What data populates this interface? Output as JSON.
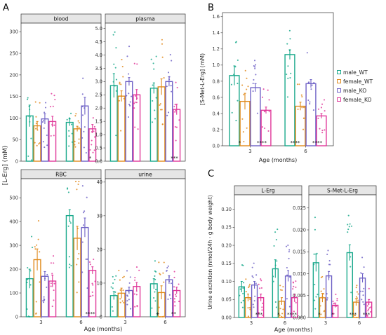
{
  "colors": {
    "male_WT": "#1aa98c",
    "female_WT": "#e08a1c",
    "male_KO": "#6f62c6",
    "female_KO": "#e0389a"
  },
  "legend": {
    "items": [
      {
        "key": "male_WT",
        "label": "male_WT"
      },
      {
        "key": "female_WT",
        "label": "female_WT"
      },
      {
        "key": "male_KO",
        "label": "male_KO"
      },
      {
        "key": "female_KO",
        "label": "female_KO"
      }
    ]
  },
  "panel_letters": {
    "A": "A",
    "B": "B",
    "C": "C"
  },
  "chart_data": [
    {
      "type": "bar",
      "title": "blood",
      "ylabel": "",
      "xlabel": "",
      "categories": [
        "3",
        "6"
      ],
      "ylim": [
        0,
        320
      ],
      "yticks": [
        0,
        50,
        100,
        150,
        200,
        250,
        300
      ],
      "series": [
        {
          "name": "male_WT",
          "values": [
            105,
            90
          ],
          "err": [
            25,
            8
          ]
        },
        {
          "name": "female_WT",
          "values": [
            82,
            75
          ],
          "err": [
            10,
            6
          ]
        },
        {
          "name": "male_KO",
          "values": [
            98,
            128
          ],
          "err": [
            12,
            20
          ]
        },
        {
          "name": "female_KO",
          "values": [
            92,
            75
          ],
          "err": [
            12,
            10
          ]
        }
      ],
      "annotations": [
        {
          "category": 1,
          "text": "*"
        }
      ]
    },
    {
      "type": "bar",
      "title": "plasma",
      "ylabel": "",
      "xlabel": "",
      "categories": [
        "3",
        "6"
      ],
      "ylim": [
        0,
        5.2
      ],
      "yticks": [
        0.0,
        0.5,
        1.0,
        1.5,
        2.0,
        2.5,
        3.0,
        3.5,
        4.0,
        4.5,
        5.0
      ],
      "series": [
        {
          "name": "male_WT",
          "values": [
            2.85,
            2.75
          ],
          "err": [
            0.45,
            0.2
          ]
        },
        {
          "name": "female_WT",
          "values": [
            2.45,
            2.8
          ],
          "err": [
            0.2,
            0.3
          ]
        },
        {
          "name": "male_KO",
          "values": [
            3.0,
            3.0
          ],
          "err": [
            0.15,
            0.18
          ]
        },
        {
          "name": "female_KO",
          "values": [
            2.5,
            1.95
          ],
          "err": [
            0.2,
            0.2
          ]
        }
      ],
      "annotations": [
        {
          "category": 1,
          "text": "***"
        }
      ]
    },
    {
      "type": "bar",
      "title": "RBC",
      "ylabel": "",
      "xlabel": "",
      "categories": [
        "3",
        "6"
      ],
      "ylim": [
        0,
        580
      ],
      "yticks": [
        0,
        100,
        200,
        300,
        400,
        500
      ],
      "series": [
        {
          "name": "male_WT",
          "values": [
            160,
            425
          ],
          "err": [
            40,
            25
          ]
        },
        {
          "name": "female_WT",
          "values": [
            240,
            330
          ],
          "err": [
            45,
            50
          ]
        },
        {
          "name": "male_KO",
          "values": [
            170,
            375
          ],
          "err": [
            20,
            40
          ]
        },
        {
          "name": "female_KO",
          "values": [
            150,
            195
          ],
          "err": [
            25,
            15
          ]
        }
      ],
      "annotations": [
        {
          "category": 1,
          "text": "****"
        }
      ]
    },
    {
      "type": "bar",
      "title": "urine",
      "ylabel": "",
      "xlabel": "",
      "categories": [
        "3",
        "6"
      ],
      "ylim": [
        0,
        41
      ],
      "yticks": [
        0,
        10,
        20,
        30,
        40
      ],
      "series": [
        {
          "name": "male_WT",
          "values": [
            6.3,
            9.8
          ],
          "err": [
            1.2,
            1.5
          ]
        },
        {
          "name": "female_WT",
          "values": [
            7.0,
            7.2
          ],
          "err": [
            1.5,
            2.0
          ]
        },
        {
          "name": "male_KO",
          "values": [
            7.8,
            11.0
          ],
          "err": [
            1.0,
            1.2
          ]
        },
        {
          "name": "female_KO",
          "values": [
            9.0,
            7.8
          ],
          "err": [
            1.2,
            1.0
          ]
        }
      ],
      "annotations": [
        {
          "category": 1,
          "text": "+"
        },
        {
          "category": 1,
          "text": "**"
        }
      ]
    },
    {
      "type": "bar",
      "title": "",
      "ylabel": "[S-Met-L-Erg] (mM)",
      "xlabel": "Age (months)",
      "categories": [
        "3",
        "6"
      ],
      "ylim": [
        0,
        1.65
      ],
      "yticks": [
        0.0,
        0.2,
        0.4,
        0.6,
        0.8,
        1.0,
        1.2,
        1.4,
        1.6
      ],
      "series": [
        {
          "name": "male_WT",
          "values": [
            0.87,
            1.13
          ],
          "err": [
            0.12,
            0.06
          ]
        },
        {
          "name": "female_WT",
          "values": [
            0.55,
            0.49
          ],
          "err": [
            0.1,
            0.05
          ]
        },
        {
          "name": "male_KO",
          "values": [
            0.72,
            0.77
          ],
          "err": [
            0.05,
            0.05
          ]
        },
        {
          "name": "female_KO",
          "values": [
            0.44,
            0.37
          ],
          "err": [
            0.04,
            0.03
          ]
        }
      ],
      "annotations": [
        {
          "category": 0,
          "text": "*"
        },
        {
          "category": 0,
          "text": "****"
        },
        {
          "category": 1,
          "text": "****"
        },
        {
          "category": 1,
          "text": "****"
        }
      ]
    },
    {
      "type": "bar",
      "title": "L-Erg",
      "ylabel": "",
      "xlabel": "",
      "categories": [
        "3",
        "6"
      ],
      "ylim": [
        0,
        0.34
      ],
      "yticks": [
        0.0,
        0.05,
        0.1,
        0.15,
        0.2,
        0.25,
        0.3
      ],
      "series": [
        {
          "name": "male_WT",
          "values": [
            0.085,
            0.135
          ],
          "err": [
            0.015,
            0.025
          ]
        },
        {
          "name": "female_WT",
          "values": [
            0.055,
            0.045
          ],
          "err": [
            0.01,
            0.01
          ]
        },
        {
          "name": "male_KO",
          "values": [
            0.09,
            0.115
          ],
          "err": [
            0.01,
            0.015
          ]
        },
        {
          "name": "female_KO",
          "values": [
            0.055,
            0.055
          ],
          "err": [
            0.01,
            0.01
          ]
        }
      ],
      "annotations": [
        {
          "category": 0,
          "text": "***"
        },
        {
          "category": 1,
          "text": "*"
        },
        {
          "category": 1,
          "text": "****"
        }
      ]
    },
    {
      "type": "bar",
      "title": "S-Met-L-Erg",
      "ylabel": "",
      "xlabel": "",
      "categories": [
        "3",
        "6"
      ],
      "ylim": [
        0,
        0.028
      ],
      "yticks": [
        0.0,
        0.005,
        0.01,
        0.015,
        0.02,
        0.025
      ],
      "series": [
        {
          "name": "male_WT",
          "values": [
            0.0125,
            0.0148
          ],
          "err": [
            0.002,
            0.0018
          ]
        },
        {
          "name": "female_WT",
          "values": [
            0.0045,
            0.0035
          ],
          "err": [
            0.001,
            0.0008
          ]
        },
        {
          "name": "male_KO",
          "values": [
            0.0095,
            0.009
          ],
          "err": [
            0.001,
            0.001
          ]
        },
        {
          "name": "female_KO",
          "values": [
            0.0028,
            0.0035
          ],
          "err": [
            0.0005,
            0.0006
          ]
        }
      ],
      "annotations": [
        {
          "category": 0,
          "text": "*"
        },
        {
          "category": 0,
          "text": "*"
        },
        {
          "category": 1,
          "text": "***"
        },
        {
          "category": 1,
          "text": "***"
        }
      ]
    }
  ],
  "axis_labels": {
    "A_y": "[L-Erg] (mM)",
    "A_x": "Age (months)",
    "C_y": "Urine excretion (nmol/24h · g body weight)",
    "C_x": "Age (months)"
  },
  "x_tick_labels": [
    "3",
    "6"
  ]
}
